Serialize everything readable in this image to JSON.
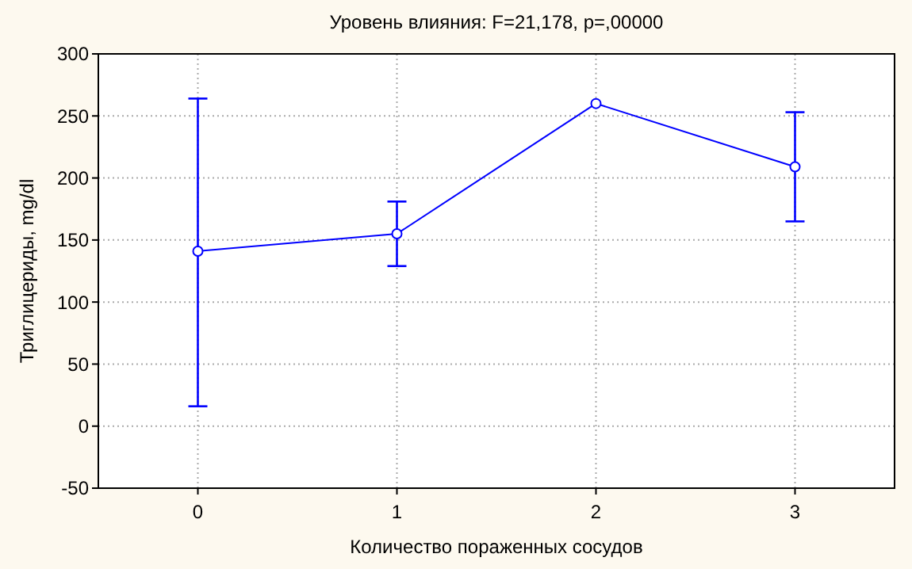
{
  "chart_data": {
    "type": "line",
    "title": "Уровень влияния: F=21,178, p=,00000",
    "xlabel": "Количество пораженных сосудов",
    "ylabel": "Триглицериды, mg/dl",
    "categories": [
      "0",
      "1",
      "2",
      "3"
    ],
    "series": [
      {
        "color": "#0000ff",
        "values": [
          141,
          155,
          260,
          209
        ],
        "errors": [
          [
            16,
            264
          ],
          [
            129,
            181
          ],
          null,
          [
            165,
            253
          ]
        ]
      }
    ],
    "ylim": [
      -50,
      300
    ],
    "yticks": [
      -50,
      0,
      50,
      100,
      150,
      200,
      250,
      300
    ],
    "grid": true,
    "marker": "circle",
    "line_style": "solid"
  }
}
